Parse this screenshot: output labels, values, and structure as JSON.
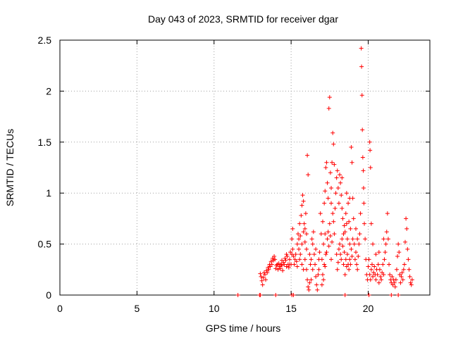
{
  "chart_data": {
    "type": "scatter",
    "title": "Day 043 of 2023, SRMTID for receiver dgar",
    "xlabel": "GPS time / hours",
    "ylabel": "SRMTID / TECUs",
    "xlim": [
      0,
      24
    ],
    "ylim": [
      0,
      2.5
    ],
    "xticks": [
      0,
      5,
      10,
      15,
      20
    ],
    "yticks": [
      0,
      0.5,
      1,
      1.5,
      2,
      2.5
    ],
    "xtick_labels": [
      "0",
      "5",
      "10",
      "15",
      "20"
    ],
    "ytick_labels": [
      "0",
      "0.5",
      "1",
      "1.5",
      "2",
      "2.5"
    ],
    "grid": true,
    "marker": "+",
    "color": "#ff0000",
    "series": [
      {
        "name": "SRMTID",
        "points": [
          [
            11.55,
            0.0
          ],
          [
            12.95,
            0.0
          ],
          [
            13.0,
            0.0
          ],
          [
            14.0,
            0.0
          ],
          [
            15.05,
            0.0
          ],
          [
            15.15,
            0.0
          ],
          [
            18.5,
            0.0
          ],
          [
            20.05,
            0.0
          ],
          [
            21.5,
            0.0
          ],
          [
            21.95,
            0.0
          ],
          [
            13.0,
            0.21
          ],
          [
            13.05,
            0.18
          ],
          [
            13.1,
            0.14
          ],
          [
            13.15,
            0.1
          ],
          [
            13.2,
            0.17
          ],
          [
            13.25,
            0.22
          ],
          [
            13.3,
            0.2
          ],
          [
            13.35,
            0.15
          ],
          [
            13.4,
            0.24
          ],
          [
            13.45,
            0.22
          ],
          [
            13.5,
            0.27
          ],
          [
            13.55,
            0.25
          ],
          [
            13.6,
            0.3
          ],
          [
            13.65,
            0.28
          ],
          [
            13.7,
            0.33
          ],
          [
            13.75,
            0.3
          ],
          [
            13.8,
            0.36
          ],
          [
            13.85,
            0.34
          ],
          [
            13.9,
            0.38
          ],
          [
            13.95,
            0.35
          ],
          [
            14.0,
            0.26
          ],
          [
            14.05,
            0.29
          ],
          [
            14.1,
            0.3
          ],
          [
            14.15,
            0.25
          ],
          [
            14.2,
            0.31
          ],
          [
            14.25,
            0.28
          ],
          [
            14.3,
            0.26
          ],
          [
            14.35,
            0.3
          ],
          [
            14.4,
            0.29
          ],
          [
            14.45,
            0.24
          ],
          [
            14.5,
            0.32
          ],
          [
            14.55,
            0.3
          ],
          [
            14.6,
            0.36
          ],
          [
            14.65,
            0.34
          ],
          [
            14.7,
            0.4
          ],
          [
            14.75,
            0.38
          ],
          [
            14.8,
            0.3
          ],
          [
            14.85,
            0.27
          ],
          [
            14.9,
            0.35
          ],
          [
            14.95,
            0.42
          ],
          [
            15.0,
            0.3
          ],
          [
            15.05,
            0.4
          ],
          [
            15.05,
            0.55
          ],
          [
            15.1,
            0.65
          ],
          [
            15.1,
            0.45
          ],
          [
            15.15,
            0.38
          ],
          [
            15.2,
            0.3
          ],
          [
            15.25,
            0.35
          ],
          [
            15.3,
            0.4
          ],
          [
            15.35,
            0.33
          ],
          [
            15.4,
            0.5
          ],
          [
            15.45,
            0.6
          ],
          [
            15.5,
            0.55
          ],
          [
            15.55,
            0.7
          ],
          [
            15.6,
            0.58
          ],
          [
            15.65,
            0.78
          ],
          [
            15.7,
            0.88
          ],
          [
            15.75,
            0.98
          ],
          [
            15.8,
            0.92
          ],
          [
            15.85,
            0.7
          ],
          [
            15.9,
            0.65
          ],
          [
            15.95,
            0.8
          ],
          [
            15.5,
            0.45
          ],
          [
            15.6,
            0.4
          ],
          [
            15.7,
            0.5
          ],
          [
            15.8,
            0.62
          ],
          [
            15.9,
            0.52
          ],
          [
            15.7,
            0.3
          ],
          [
            15.8,
            0.25
          ],
          [
            15.9,
            0.35
          ],
          [
            16.0,
            0.6
          ],
          [
            16.05,
            1.37
          ],
          [
            16.1,
            1.18
          ],
          [
            16.0,
            0.25
          ],
          [
            16.05,
            0.15
          ],
          [
            16.1,
            0.08
          ],
          [
            16.15,
            0.05
          ],
          [
            16.2,
            0.12
          ],
          [
            16.25,
            0.3
          ],
          [
            16.3,
            0.35
          ],
          [
            16.35,
            0.55
          ],
          [
            16.4,
            0.5
          ],
          [
            16.45,
            0.62
          ],
          [
            16.5,
            0.4
          ],
          [
            16.55,
            0.3
          ],
          [
            16.6,
            0.18
          ],
          [
            16.65,
            0.1
          ],
          [
            16.7,
            0.05
          ],
          [
            16.75,
            0.2
          ],
          [
            16.8,
            0.25
          ],
          [
            16.85,
            0.42
          ],
          [
            16.9,
            0.8
          ],
          [
            16.95,
            0.6
          ],
          [
            17.0,
            0.35
          ],
          [
            17.05,
            0.72
          ],
          [
            17.1,
            0.5
          ],
          [
            17.15,
            0.9
          ],
          [
            17.2,
            1.02
          ],
          [
            17.25,
            1.25
          ],
          [
            17.3,
            1.3
          ],
          [
            17.35,
            1.1
          ],
          [
            17.4,
            0.95
          ],
          [
            17.45,
            1.83
          ],
          [
            17.5,
            1.94
          ],
          [
            17.55,
            1.2
          ],
          [
            17.6,
            1.05
          ],
          [
            17.65,
            1.3
          ],
          [
            17.7,
            1.59
          ],
          [
            17.75,
            1.48
          ],
          [
            17.8,
            1.28
          ],
          [
            17.0,
            0.1
          ],
          [
            17.05,
            0.2
          ],
          [
            17.1,
            0.15
          ],
          [
            17.15,
            0.3
          ],
          [
            17.2,
            0.28
          ],
          [
            17.25,
            0.4
          ],
          [
            17.3,
            0.42
          ],
          [
            17.35,
            0.55
          ],
          [
            17.4,
            0.62
          ],
          [
            17.45,
            0.48
          ],
          [
            17.5,
            0.7
          ],
          [
            17.55,
            0.58
          ],
          [
            17.6,
            0.35
          ],
          [
            17.65,
            0.52
          ],
          [
            17.7,
            0.8
          ],
          [
            17.75,
            0.72
          ],
          [
            17.8,
            0.6
          ],
          [
            17.85,
            0.85
          ],
          [
            17.9,
            1.0
          ],
          [
            17.95,
            1.15
          ],
          [
            18.0,
            1.22
          ],
          [
            18.05,
            1.05
          ],
          [
            18.1,
            0.9
          ],
          [
            18.15,
            1.18
          ],
          [
            18.2,
            1.1
          ],
          [
            18.25,
            0.98
          ],
          [
            18.3,
            0.85
          ],
          [
            18.35,
            0.75
          ],
          [
            18.4,
            0.6
          ],
          [
            18.45,
            0.68
          ],
          [
            18.0,
            0.25
          ],
          [
            18.05,
            0.32
          ],
          [
            18.1,
            0.45
          ],
          [
            18.15,
            0.5
          ],
          [
            18.2,
            0.4
          ],
          [
            18.25,
            0.35
          ],
          [
            18.3,
            0.55
          ],
          [
            18.35,
            0.48
          ],
          [
            18.4,
            0.3
          ],
          [
            18.45,
            0.42
          ],
          [
            18.5,
            0.62
          ],
          [
            18.55,
            0.8
          ],
          [
            18.6,
            0.7
          ],
          [
            18.65,
            0.55
          ],
          [
            18.7,
            0.9
          ],
          [
            18.75,
            0.72
          ],
          [
            18.8,
            0.5
          ],
          [
            18.85,
            0.65
          ],
          [
            18.9,
            1.45
          ],
          [
            18.95,
            1.3
          ],
          [
            18.5,
            0.2
          ],
          [
            18.55,
            0.35
          ],
          [
            18.6,
            0.28
          ],
          [
            18.65,
            0.4
          ],
          [
            18.7,
            0.3
          ],
          [
            18.75,
            0.25
          ],
          [
            18.8,
            0.35
          ],
          [
            18.85,
            0.3
          ],
          [
            18.9,
            0.45
          ],
          [
            18.95,
            0.38
          ],
          [
            19.0,
            0.95
          ],
          [
            19.05,
            0.75
          ],
          [
            19.1,
            0.5
          ],
          [
            19.15,
            0.35
          ],
          [
            19.2,
            0.42
          ],
          [
            19.25,
            0.3
          ],
          [
            19.3,
            0.25
          ],
          [
            19.35,
            0.38
          ],
          [
            19.4,
            0.5
          ],
          [
            19.45,
            0.6
          ],
          [
            19.5,
            0.8
          ],
          [
            19.55,
            2.42
          ],
          [
            19.57,
            2.24
          ],
          [
            19.6,
            1.96
          ],
          [
            19.62,
            1.62
          ],
          [
            19.65,
            1.35
          ],
          [
            19.68,
            1.22
          ],
          [
            19.7,
            1.05
          ],
          [
            19.72,
            0.9
          ],
          [
            19.75,
            0.7
          ],
          [
            19.8,
            0.55
          ],
          [
            19.85,
            0.35
          ],
          [
            19.9,
            0.2
          ],
          [
            19.95,
            0.15
          ],
          [
            20.0,
            0.28
          ],
          [
            20.05,
            0.35
          ],
          [
            20.1,
            1.5
          ],
          [
            20.12,
            1.42
          ],
          [
            20.15,
            1.25
          ],
          [
            20.2,
            0.7
          ],
          [
            20.1,
            0.2
          ],
          [
            20.15,
            0.15
          ],
          [
            20.2,
            0.25
          ],
          [
            20.25,
            0.3
          ],
          [
            20.3,
            0.18
          ],
          [
            20.35,
            0.22
          ],
          [
            20.4,
            0.28
          ],
          [
            20.45,
            0.2
          ],
          [
            20.5,
            0.15
          ],
          [
            20.55,
            0.25
          ],
          [
            20.6,
            0.2
          ],
          [
            20.65,
            0.3
          ],
          [
            20.7,
            0.12
          ],
          [
            20.75,
            0.25
          ],
          [
            20.8,
            0.18
          ],
          [
            20.85,
            0.15
          ],
          [
            20.9,
            0.22
          ],
          [
            20.95,
            0.3
          ],
          [
            21.0,
            0.2
          ],
          [
            21.05,
            0.35
          ],
          [
            21.1,
            0.42
          ],
          [
            21.15,
            0.5
          ],
          [
            21.2,
            0.62
          ],
          [
            21.25,
            0.8
          ],
          [
            21.3,
            0.55
          ],
          [
            21.35,
            0.3
          ],
          [
            21.4,
            0.2
          ],
          [
            21.45,
            0.15
          ],
          [
            21.5,
            0.12
          ],
          [
            21.55,
            0.18
          ],
          [
            21.6,
            0.1
          ],
          [
            21.65,
            0.15
          ],
          [
            21.7,
            0.12
          ],
          [
            21.75,
            0.08
          ],
          [
            21.8,
            0.15
          ],
          [
            21.85,
            0.25
          ],
          [
            21.9,
            0.38
          ],
          [
            21.95,
            0.5
          ],
          [
            22.0,
            0.42
          ],
          [
            22.05,
            0.2
          ],
          [
            22.1,
            0.12
          ],
          [
            22.15,
            0.18
          ],
          [
            22.2,
            0.22
          ],
          [
            22.25,
            0.15
          ],
          [
            22.3,
            0.25
          ],
          [
            22.35,
            0.3
          ],
          [
            22.4,
            0.52
          ],
          [
            22.45,
            0.75
          ],
          [
            22.5,
            0.65
          ],
          [
            22.55,
            0.45
          ],
          [
            22.6,
            0.35
          ],
          [
            22.65,
            0.25
          ],
          [
            22.7,
            0.18
          ],
          [
            22.75,
            0.12
          ],
          [
            22.8,
            0.1
          ],
          [
            22.85,
            0.15
          ],
          [
            20.3,
            0.5
          ],
          [
            20.5,
            0.4
          ],
          [
            20.7,
            0.42
          ],
          [
            21.0,
            0.55
          ],
          [
            19.3,
            0.55
          ],
          [
            19.2,
            0.65
          ],
          [
            19.0,
            0.55
          ],
          [
            18.8,
            0.95
          ],
          [
            18.6,
            1.0
          ],
          [
            18.3,
            1.15
          ],
          [
            17.95,
            0.4
          ],
          [
            17.6,
            0.9
          ],
          [
            17.2,
            0.6
          ],
          [
            16.8,
            0.35
          ],
          [
            16.6,
            0.45
          ],
          [
            16.4,
            0.25
          ],
          [
            16.3,
            0.15
          ],
          [
            16.2,
            0.4
          ],
          [
            16.0,
            0.45
          ],
          [
            15.55,
            0.35
          ],
          [
            15.4,
            0.28
          ],
          [
            14.9,
            0.3
          ],
          [
            14.7,
            0.28
          ],
          [
            14.4,
            0.34
          ]
        ]
      }
    ]
  }
}
